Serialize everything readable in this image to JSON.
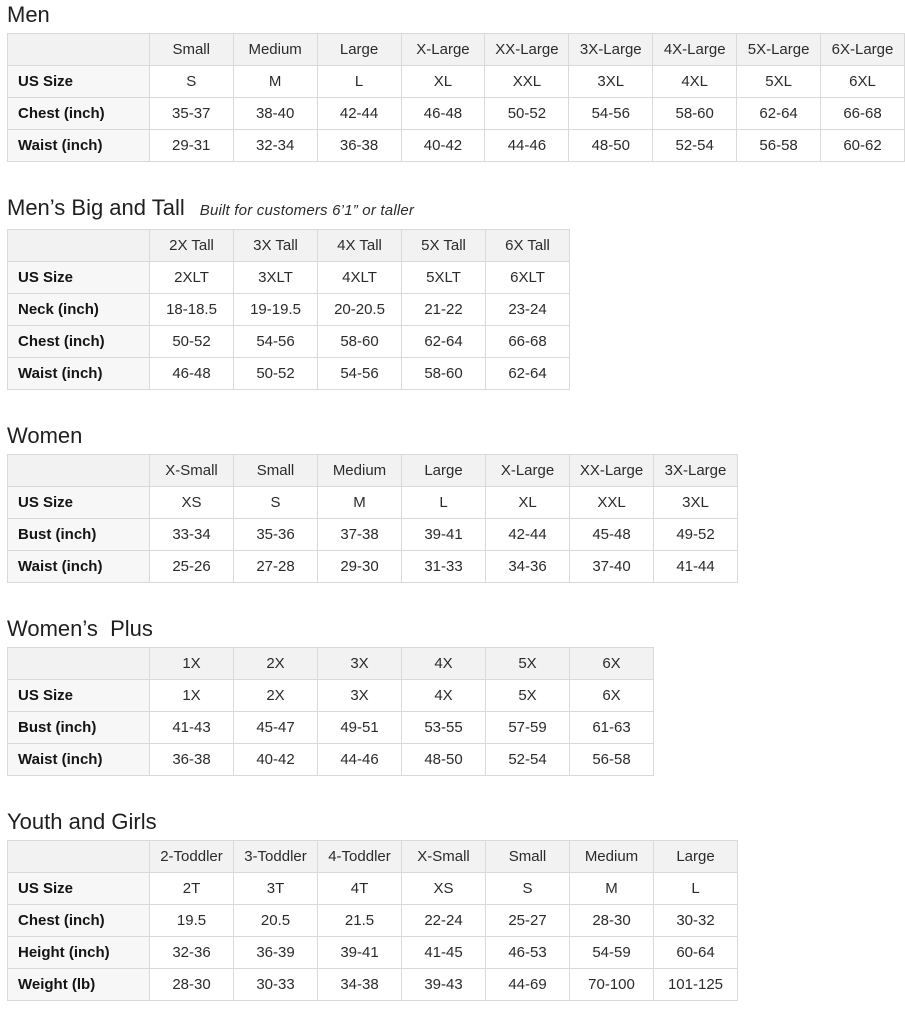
{
  "colors": {
    "header_bg": "#f2f2f2",
    "label_bg": "#f7f7f7",
    "border": "#d9d9d9",
    "text": "#2b2b2b",
    "title": "#1f1f1f"
  },
  "sections": [
    {
      "id": "men",
      "title": "Men",
      "subtitle": null,
      "columns": [
        "Small",
        "Medium",
        "Large",
        "X-Large",
        "XX-Large",
        "3X-Large",
        "4X-Large",
        "5X-Large",
        "6X-Large"
      ],
      "rows": [
        {
          "label": "US Size",
          "values": [
            "S",
            "M",
            "L",
            "XL",
            "XXL",
            "3XL",
            "4XL",
            "5XL",
            "6XL"
          ]
        },
        {
          "label": "Chest (inch)",
          "values": [
            "35-37",
            "38-40",
            "42-44",
            "46-48",
            "50-52",
            "54-56",
            "58-60",
            "62-64",
            "66-68"
          ]
        },
        {
          "label": "Waist (inch)",
          "values": [
            "29-31",
            "32-34",
            "36-38",
            "40-42",
            "44-46",
            "48-50",
            "52-54",
            "56-58",
            "60-62"
          ]
        }
      ]
    },
    {
      "id": "mens-big-and-tall",
      "title": "Men’s Big and Tall",
      "subtitle": "Built for customers 6’1” or taller",
      "columns": [
        "2X Tall",
        "3X Tall",
        "4X Tall",
        "5X Tall",
        "6X Tall"
      ],
      "rows": [
        {
          "label": "US Size",
          "values": [
            "2XLT",
            "3XLT",
            "4XLT",
            "5XLT",
            "6XLT"
          ]
        },
        {
          "label": "Neck (inch)",
          "values": [
            "18-18.5",
            "19-19.5",
            "20-20.5",
            "21-22",
            "23-24"
          ]
        },
        {
          "label": "Chest (inch)",
          "values": [
            "50-52",
            "54-56",
            "58-60",
            "62-64",
            "66-68"
          ]
        },
        {
          "label": "Waist (inch)",
          "values": [
            "46-48",
            "50-52",
            "54-56",
            "58-60",
            "62-64"
          ]
        }
      ]
    },
    {
      "id": "women",
      "title": "Women",
      "subtitle": null,
      "columns": [
        "X-Small",
        "Small",
        "Medium",
        "Large",
        "X-Large",
        "XX-Large",
        "3X-Large"
      ],
      "rows": [
        {
          "label": "US Size",
          "values": [
            "XS",
            "S",
            "M",
            "L",
            "XL",
            "XXL",
            "3XL"
          ]
        },
        {
          "label": "Bust (inch)",
          "values": [
            "33-34",
            "35-36",
            "37-38",
            "39-41",
            "42-44",
            "45-48",
            "49-52"
          ]
        },
        {
          "label": "Waist (inch)",
          "values": [
            "25-26",
            "27-28",
            "29-30",
            "31-33",
            "34-36",
            "37-40",
            "41-44"
          ]
        }
      ]
    },
    {
      "id": "womens-plus",
      "title": "Women’s  Plus",
      "subtitle": null,
      "columns": [
        "1X",
        "2X",
        "3X",
        "4X",
        "5X",
        "6X"
      ],
      "rows": [
        {
          "label": "US Size",
          "values": [
            "1X",
            "2X",
            "3X",
            "4X",
            "5X",
            "6X"
          ]
        },
        {
          "label": "Bust (inch)",
          "values": [
            "41-43",
            "45-47",
            "49-51",
            "53-55",
            "57-59",
            "61-63"
          ]
        },
        {
          "label": "Waist (inch)",
          "values": [
            "36-38",
            "40-42",
            "44-46",
            "48-50",
            "52-54",
            "56-58"
          ]
        }
      ]
    },
    {
      "id": "youth-and-girls",
      "title": "Youth and Girls",
      "subtitle": null,
      "columns": [
        "2-Toddler",
        "3-Toddler",
        "4-Toddler",
        "X-Small",
        "Small",
        "Medium",
        "Large"
      ],
      "rows": [
        {
          "label": "US Size",
          "values": [
            "2T",
            "3T",
            "4T",
            "XS",
            "S",
            "M",
            "L"
          ]
        },
        {
          "label": "Chest (inch)",
          "values": [
            "19.5",
            "20.5",
            "21.5",
            "22-24",
            "25-27",
            "28-30",
            "30-32"
          ]
        },
        {
          "label": "Height (inch)",
          "values": [
            "32-36",
            "36-39",
            "39-41",
            "41-45",
            "46-53",
            "54-59",
            "60-64"
          ]
        },
        {
          "label": "Weight (lb)",
          "values": [
            "28-30",
            "30-33",
            "34-38",
            "39-43",
            "44-69",
            "70-100",
            "101-125"
          ]
        }
      ]
    }
  ]
}
